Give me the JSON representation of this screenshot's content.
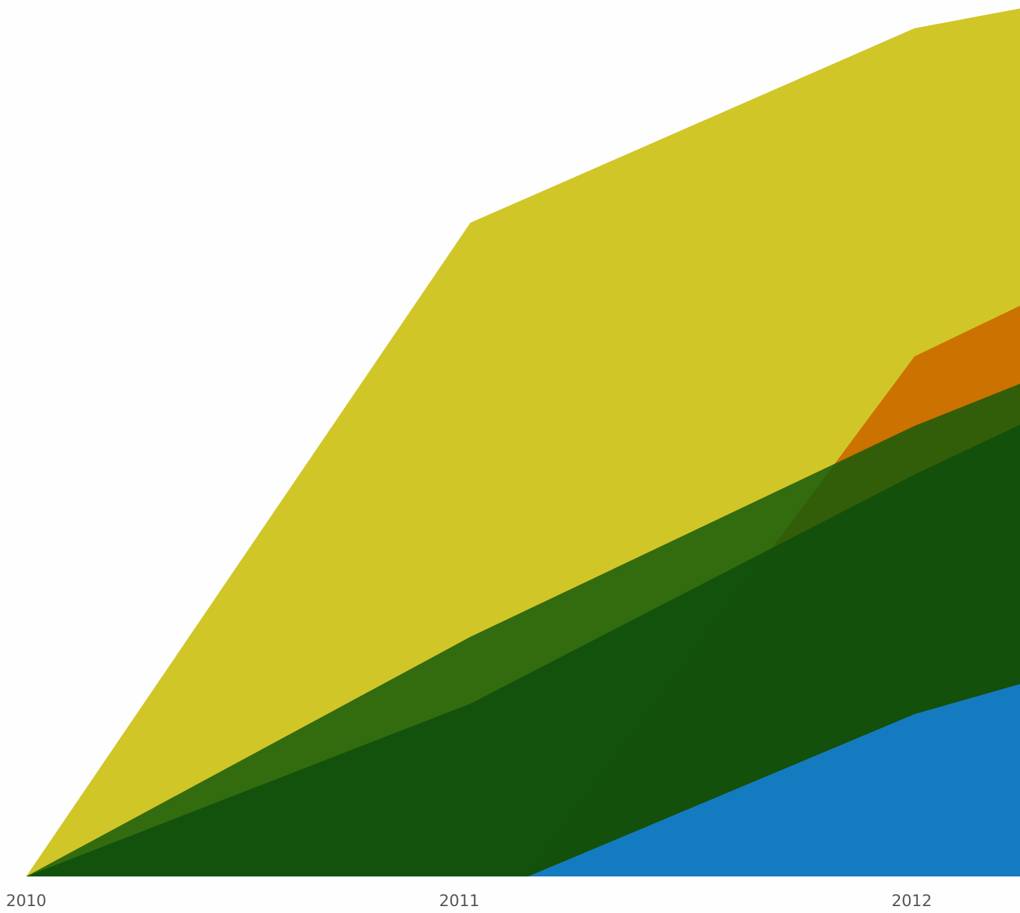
{
  "chart_data": {
    "type": "area",
    "x_ticks": [
      "2010",
      "2011",
      "2012"
    ],
    "x": [
      2010.0,
      2011.0,
      2012.0,
      2012.24
    ],
    "ylim": [
      0,
      100
    ],
    "grid": false,
    "legend": "none",
    "series": [
      {
        "color": "#d1c628",
        "opacity": 1.0,
        "points": [
          [
            2010.0,
            0
          ],
          [
            2011.0,
            75.3
          ],
          [
            2012.0,
            97.7
          ],
          [
            2012.24,
            100
          ]
        ]
      },
      {
        "color": "#cc7200",
        "opacity": 1.0,
        "points": [
          [
            2011.13,
            0
          ],
          [
            2012.0,
            59.9
          ],
          [
            2012.24,
            65.8
          ]
        ]
      },
      {
        "color": "#175a0b",
        "opacity": 0.85,
        "points": [
          [
            2010.0,
            0
          ],
          [
            2011.0,
            27.6
          ],
          [
            2012.0,
            51.9
          ],
          [
            2012.24,
            56.8
          ]
        ]
      },
      {
        "color": "#0e4d0c",
        "opacity": 0.85,
        "points": [
          [
            2010.0,
            0
          ],
          [
            2011.0,
            19.9
          ],
          [
            2012.0,
            46.3
          ],
          [
            2012.24,
            52.1
          ]
        ]
      },
      {
        "color": "#157bc0",
        "opacity": 1.0,
        "points": [
          [
            2011.13,
            0
          ],
          [
            2012.0,
            18.7
          ],
          [
            2012.24,
            22.2
          ]
        ]
      }
    ]
  }
}
